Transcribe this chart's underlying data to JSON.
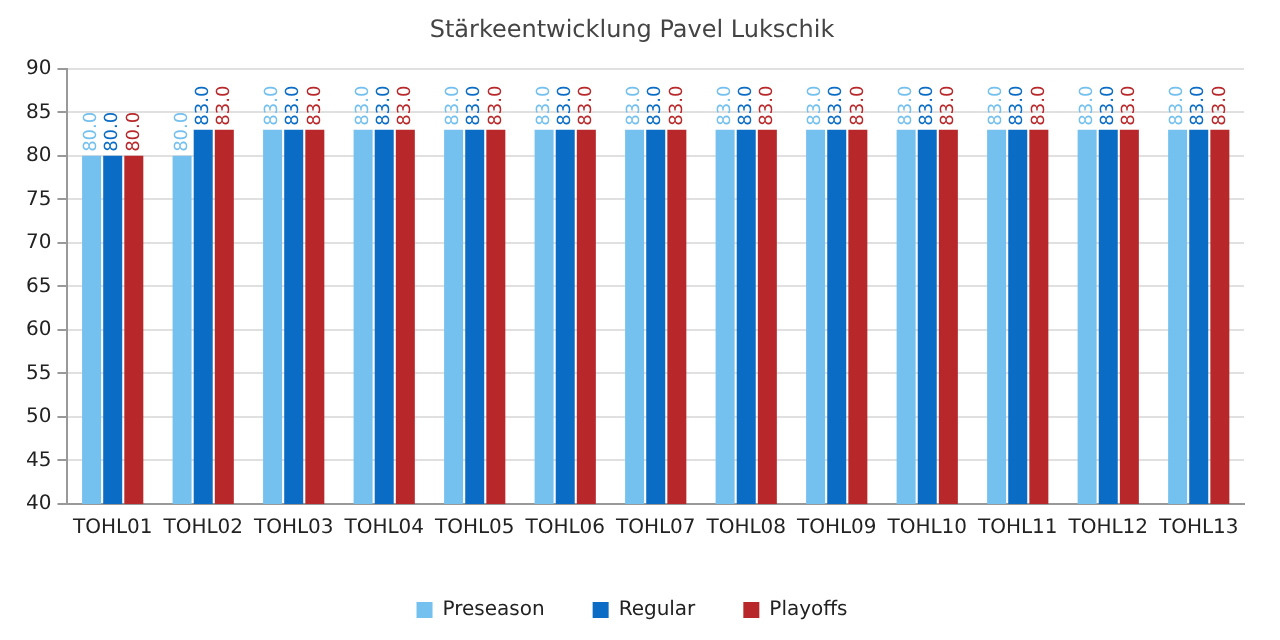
{
  "chart_data": {
    "type": "bar",
    "title": "Stärkeentwicklung Pavel Lukschik",
    "categories": [
      "TOHL01",
      "TOHL02",
      "TOHL03",
      "TOHL04",
      "TOHL05",
      "TOHL06",
      "TOHL07",
      "TOHL08",
      "TOHL09",
      "TOHL10",
      "TOHL11",
      "TOHL12",
      "TOHL13"
    ],
    "series": [
      {
        "name": "Preseason",
        "color": "#74c0ee",
        "values": [
          80,
          80,
          83,
          83,
          83,
          83,
          83,
          83,
          83,
          83,
          83,
          83,
          83
        ],
        "value_labels": [
          "80.0",
          "80.0",
          "83.0",
          "83.0",
          "83.0",
          "83.0",
          "83.0",
          "83.0",
          "83.0",
          "83.0",
          "83.0",
          "83.0",
          "83.0"
        ]
      },
      {
        "name": "Regular",
        "color": "#0a6cc4",
        "values": [
          80,
          83,
          83,
          83,
          83,
          83,
          83,
          83,
          83,
          83,
          83,
          83,
          83
        ],
        "value_labels": [
          "80.0",
          "83.0",
          "83.0",
          "83.0",
          "83.0",
          "83.0",
          "83.0",
          "83.0",
          "83.0",
          "83.0",
          "83.0",
          "83.0",
          "83.0"
        ]
      },
      {
        "name": "Playoffs",
        "color": "#b8282a",
        "values": [
          80,
          83,
          83,
          83,
          83,
          83,
          83,
          83,
          83,
          83,
          83,
          83,
          83
        ],
        "value_labels": [
          "80.0",
          "83.0",
          "83.0",
          "83.0",
          "83.0",
          "83.0",
          "83.0",
          "83.0",
          "83.0",
          "83.0",
          "83.0",
          "83.0",
          "83.0"
        ]
      }
    ],
    "ylim": [
      40,
      90
    ],
    "yticks": [
      40,
      45,
      50,
      55,
      60,
      65,
      70,
      75,
      80,
      85,
      90
    ],
    "grid": "y",
    "legend": "bottom"
  }
}
